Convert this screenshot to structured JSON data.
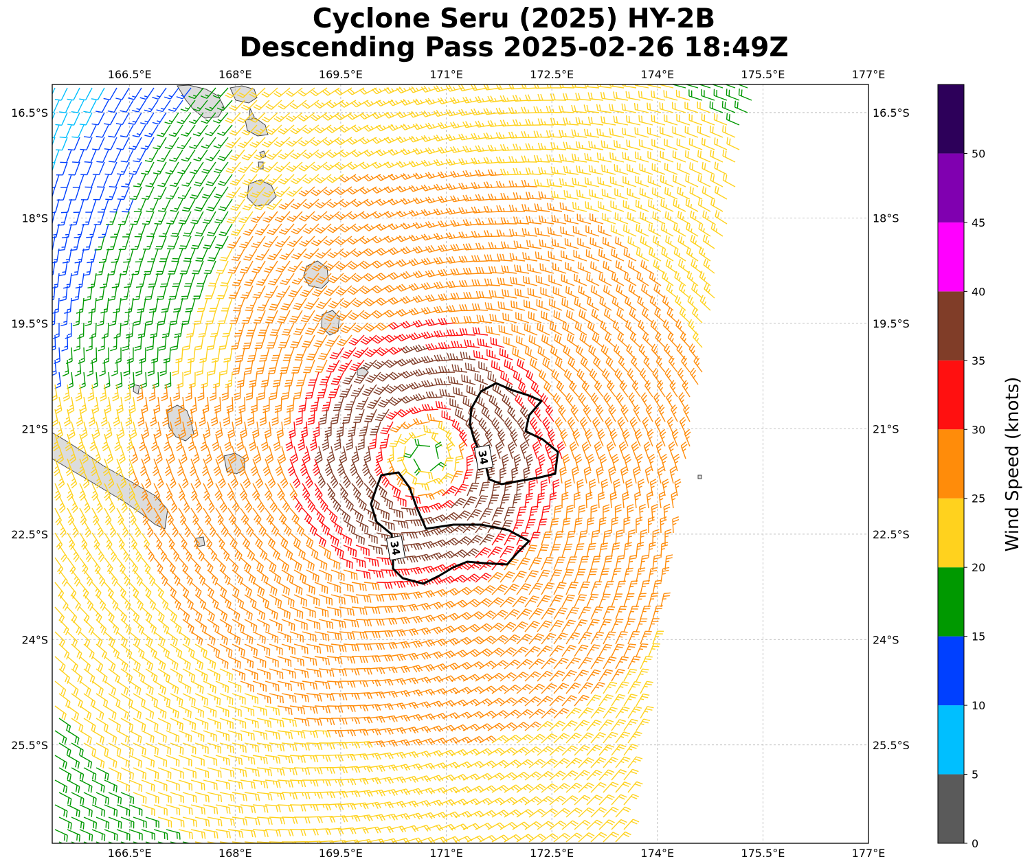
{
  "title_line1": "Cyclone Seru (2025) HY-2B",
  "title_line2": "Descending Pass 2025-02-26 18:49Z",
  "map": {
    "lon_labels": [
      "166.5°E",
      "168°E",
      "169.5°E",
      "171°E",
      "172.5°E",
      "174°E",
      "175.5°E",
      "177°E"
    ],
    "lon_values": [
      166.5,
      168,
      169.5,
      171,
      172.5,
      174,
      175.5,
      177
    ],
    "lat_labels": [
      "16.5°S",
      "18°S",
      "19.5°S",
      "21°S",
      "22.5°S",
      "24°S",
      "25.5°S"
    ],
    "lat_values": [
      -16.5,
      -18,
      -19.5,
      -21,
      -22.5,
      -24,
      -25.5
    ],
    "lon_range": [
      165.4,
      177.0
    ],
    "lat_range": [
      -26.9,
      -16.1
    ],
    "gridlines": "dashed",
    "storm_center": {
      "lon": 170.7,
      "lat": -21.4
    },
    "contour_label": "34",
    "contour_level_knots": 34
  },
  "colorbar": {
    "label": "Wind Speed (knots)",
    "tick_labels": [
      "0",
      "5",
      "10",
      "15",
      "20",
      "25",
      "30",
      "35",
      "40",
      "45",
      "50"
    ],
    "bins": [
      {
        "min": 0,
        "max": 5,
        "color": "#5a5a5a"
      },
      {
        "min": 5,
        "max": 10,
        "color": "#00bfff"
      },
      {
        "min": 10,
        "max": 15,
        "color": "#0040ff"
      },
      {
        "min": 15,
        "max": 20,
        "color": "#009900"
      },
      {
        "min": 20,
        "max": 25,
        "color": "#ffd21e"
      },
      {
        "min": 25,
        "max": 30,
        "color": "#ff8c0a"
      },
      {
        "min": 30,
        "max": 35,
        "color": "#ff1010"
      },
      {
        "min": 35,
        "max": 40,
        "color": "#803d28"
      },
      {
        "min": 40,
        "max": 45,
        "color": "#ff00ff"
      },
      {
        "min": 45,
        "max": 50,
        "color": "#8000b0"
      },
      {
        "min": 50,
        "max": 55,
        "color": "#2d005a"
      }
    ]
  }
}
